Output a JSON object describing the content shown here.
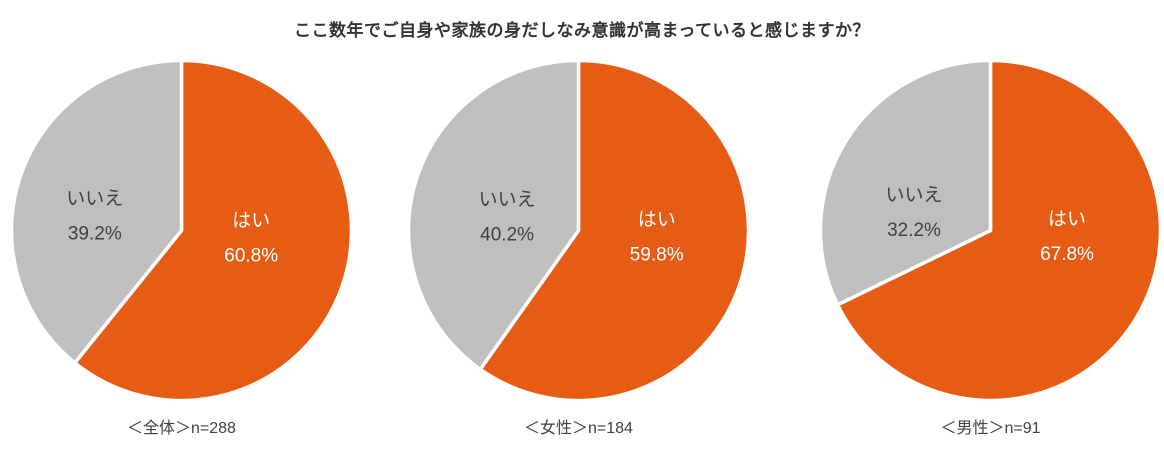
{
  "title": "ここ数年でご自身や家族の身だしなみ意識が高まっていると感じますか？",
  "colors": {
    "yes": "#E65C15",
    "no": "#BFBFBF",
    "divider": "#FFFFFF",
    "title_text": "#333333",
    "caption_text": "#404040",
    "label_on_yes": "#FFFFFF",
    "label_on_no": "#404040"
  },
  "chart_data": [
    {
      "type": "pie",
      "group": "全体",
      "n": 288,
      "caption": "＜全体＞n=288",
      "start_angle_deg": 0,
      "direction": "clockwise",
      "legend": "none",
      "slices": [
        {
          "label": "はい",
          "value": 60.8,
          "display": "60.8%",
          "color_key": "yes",
          "label_pos": [
            0.41,
            0.03
          ]
        },
        {
          "label": "いいえ",
          "value": 39.2,
          "display": "39.2%",
          "color_key": "no",
          "label_pos": [
            -0.51,
            -0.1
          ]
        }
      ]
    },
    {
      "type": "pie",
      "group": "女性",
      "n": 184,
      "caption": "＜女性＞n=184",
      "start_angle_deg": 0,
      "direction": "clockwise",
      "legend": "none",
      "slices": [
        {
          "label": "はい",
          "value": 59.8,
          "display": "59.8%",
          "color_key": "yes",
          "label_pos": [
            0.46,
            0.024
          ]
        },
        {
          "label": "いいえ",
          "value": 40.2,
          "display": "40.2%",
          "color_key": "no",
          "label_pos": [
            -0.42,
            -0.094
          ]
        }
      ]
    },
    {
      "type": "pie",
      "group": "男性",
      "n": 91,
      "caption": "＜男性＞n=91",
      "start_angle_deg": 0,
      "direction": "clockwise",
      "legend": "none",
      "slices": [
        {
          "label": "はい",
          "value": 67.8,
          "display": "67.8%",
          "color_key": "yes",
          "label_pos": [
            0.45,
            0.02
          ]
        },
        {
          "label": "いいえ",
          "value": 32.2,
          "display": "32.2%",
          "color_key": "no",
          "label_pos": [
            -0.45,
            -0.12
          ]
        }
      ]
    }
  ]
}
